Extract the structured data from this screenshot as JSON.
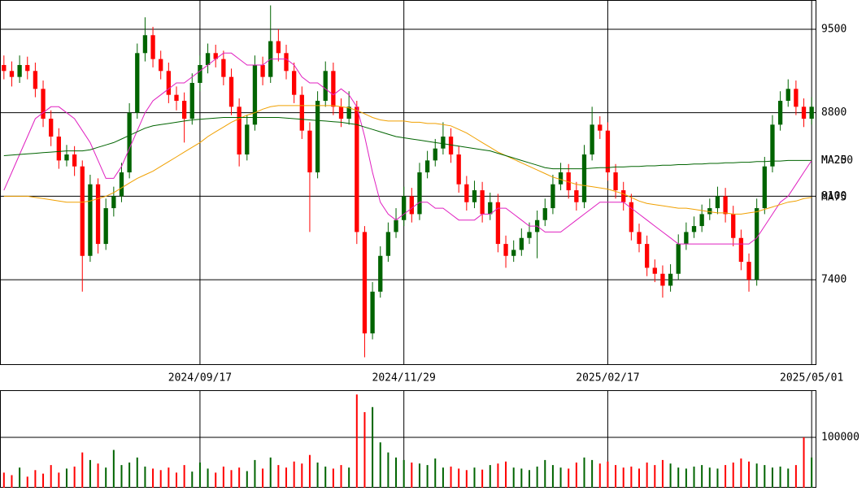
{
  "chart_data": {
    "type": "candlestick",
    "categories": [
      null,
      null,
      null,
      null,
      null,
      null,
      null,
      null,
      null,
      null,
      null,
      null,
      null,
      null,
      null,
      null,
      null,
      null,
      null,
      null,
      null,
      null,
      null,
      null,
      null,
      "2024/09/17",
      null,
      null,
      null,
      null,
      null,
      null,
      null,
      null,
      null,
      null,
      null,
      null,
      null,
      null,
      null,
      null,
      null,
      null,
      null,
      null,
      null,
      null,
      null,
      null,
      null,
      "2024/11/29",
      null,
      null,
      null,
      null,
      null,
      null,
      null,
      null,
      null,
      null,
      null,
      null,
      null,
      null,
      null,
      null,
      null,
      null,
      null,
      null,
      null,
      null,
      null,
      null,
      null,
      "2025/02/17",
      null,
      null,
      null,
      null,
      null,
      null,
      null,
      null,
      null,
      null,
      null,
      null,
      null,
      null,
      null,
      null,
      null,
      null,
      null,
      null,
      null,
      null,
      null,
      null,
      null,
      "2025/05/01"
    ],
    "open": [
      9200,
      9150,
      9100,
      9200,
      9150,
      9000,
      8750,
      8600,
      8400,
      8450,
      8350,
      7600,
      8200,
      7700,
      8000,
      8100,
      8300,
      8800,
      9300,
      9450,
      9250,
      9150,
      8950,
      8900,
      8750,
      9050,
      9200,
      9300,
      9250,
      9100,
      8850,
      8450,
      8700,
      9200,
      9100,
      9400,
      9300,
      9150,
      8950,
      8650,
      8300,
      8900,
      9150,
      8850,
      8750,
      8850,
      7800,
      6950,
      7300,
      7600,
      7800,
      7900,
      8100,
      7950,
      8300,
      8400,
      8500,
      8600,
      8450,
      8200,
      8050,
      8150,
      7950,
      8050,
      7700,
      7600,
      7650,
      7750,
      7800,
      7900,
      8000,
      8200,
      8300,
      8150,
      8050,
      8450,
      8700,
      8650,
      8300,
      8150,
      8050,
      7800,
      7700,
      7500,
      7450,
      7350,
      7450,
      7700,
      7800,
      7850,
      7950,
      8000,
      8100,
      7950,
      7750,
      7550,
      7400,
      8000,
      8350,
      8700,
      8900,
      9000,
      8850,
      8750
    ],
    "high": [
      9280,
      9230,
      9280,
      9270,
      9220,
      9070,
      8820,
      8670,
      8530,
      8520,
      8400,
      8280,
      8250,
      8080,
      8180,
      8380,
      8880,
      9380,
      9600,
      9520,
      9320,
      9220,
      9020,
      8970,
      9130,
      9280,
      9380,
      9370,
      9320,
      9170,
      8920,
      8780,
      9280,
      9270,
      9700,
      9500,
      9370,
      9220,
      9020,
      8720,
      8980,
      9230,
      9220,
      8920,
      8980,
      8900,
      7850,
      7380,
      7680,
      7880,
      8000,
      8180,
      8170,
      8380,
      8480,
      8580,
      8720,
      8670,
      8520,
      8270,
      8230,
      8220,
      8130,
      8120,
      7770,
      7730,
      7830,
      7880,
      7980,
      8080,
      8280,
      8380,
      8370,
      8220,
      8530,
      8850,
      8770,
      8720,
      8370,
      8220,
      8120,
      7870,
      7770,
      7570,
      7520,
      7530,
      7780,
      7880,
      7930,
      8030,
      8080,
      8180,
      8170,
      8020,
      7820,
      7620,
      8080,
      8430,
      8780,
      8980,
      9080,
      9070,
      8920,
      8930
    ],
    "low": [
      9080,
      9020,
      9050,
      9080,
      8930,
      8680,
      8520,
      8330,
      8350,
      8270,
      7300,
      7550,
      7620,
      7650,
      7930,
      8050,
      8250,
      8750,
      9230,
      9180,
      9080,
      8880,
      8820,
      8550,
      8700,
      8980,
      9130,
      9180,
      9030,
      8780,
      8350,
      8400,
      8650,
      9030,
      9050,
      9230,
      9080,
      8880,
      8580,
      7800,
      8250,
      8850,
      8780,
      8680,
      8700,
      7700,
      6750,
      6900,
      7250,
      7550,
      7750,
      7850,
      7880,
      7900,
      8250,
      8350,
      8450,
      8380,
      8130,
      7980,
      8000,
      7880,
      7900,
      7630,
      7500,
      7550,
      7600,
      7700,
      7580,
      7850,
      7950,
      8150,
      8080,
      7980,
      8000,
      8400,
      8580,
      8230,
      8080,
      7980,
      7730,
      7630,
      7430,
      7380,
      7250,
      7300,
      7400,
      7650,
      7750,
      7800,
      7900,
      7950,
      7880,
      7680,
      7480,
      7300,
      7350,
      7950,
      8300,
      8650,
      8850,
      8780,
      8680,
      8700
    ],
    "close": [
      9150,
      9100,
      9200,
      9150,
      9000,
      8750,
      8600,
      8400,
      8450,
      8350,
      7600,
      8200,
      7700,
      8000,
      8100,
      8300,
      8800,
      9300,
      9450,
      9250,
      9150,
      8950,
      8900,
      8750,
      9050,
      9200,
      9300,
      9250,
      9100,
      8850,
      8450,
      8700,
      9200,
      9100,
      9400,
      9300,
      9150,
      8950,
      8650,
      8300,
      8900,
      9150,
      8850,
      8750,
      8850,
      7800,
      6950,
      7300,
      7600,
      7800,
      7900,
      8100,
      7950,
      8300,
      8400,
      8500,
      8600,
      8450,
      8200,
      8050,
      8150,
      7950,
      8050,
      7700,
      7600,
      7650,
      7750,
      7800,
      7900,
      8000,
      8200,
      8300,
      8150,
      8050,
      8450,
      8700,
      8650,
      8300,
      8150,
      8050,
      7800,
      7700,
      7500,
      7450,
      7350,
      7450,
      7700,
      7800,
      7850,
      7950,
      8000,
      8100,
      7950,
      7750,
      7550,
      7400,
      8000,
      8350,
      8700,
      8900,
      9000,
      8850,
      8750,
      8850
    ],
    "up_color": "#006400",
    "down_color": "#ff0000",
    "ylim": [
      6692,
      9745
    ],
    "yticks": [
      9500,
      8800,
      8100,
      7400
    ],
    "grid": true,
    "moving_averages": [
      {
        "name": "MA25",
        "color": "#e020c0",
        "values": [
          8150,
          8300,
          8450,
          8600,
          8750,
          8800,
          8850,
          8850,
          8800,
          8750,
          8650,
          8550,
          8400,
          8250,
          8250,
          8350,
          8500,
          8650,
          8800,
          8900,
          8950,
          9000,
          9050,
          9050,
          9100,
          9150,
          9200,
          9250,
          9300,
          9300,
          9250,
          9200,
          9200,
          9200,
          9250,
          9250,
          9250,
          9200,
          9100,
          9050,
          9050,
          9000,
          8950,
          9000,
          8950,
          8850,
          8600,
          8300,
          8050,
          7950,
          7900,
          7950,
          8000,
          8050,
          8050,
          8000,
          8000,
          7950,
          7900,
          7900,
          7900,
          7950,
          7950,
          8000,
          8000,
          7950,
          7900,
          7850,
          7850,
          7800,
          7800,
          7800,
          7850,
          7900,
          7950,
          8000,
          8050,
          8050,
          8050,
          8050,
          8000,
          7950,
          7900,
          7850,
          7800,
          7750,
          7700,
          7700,
          7700,
          7700,
          7700,
          7700,
          7700,
          7700,
          7700,
          7700,
          7750,
          7850,
          7950,
          8050,
          8100,
          8200,
          8300,
          8400
        ]
      },
      {
        "name": "MA75",
        "color": "#f0a000",
        "values": [
          8100,
          8100,
          8100,
          8100,
          8090,
          8080,
          8070,
          8060,
          8050,
          8050,
          8050,
          8060,
          8080,
          8100,
          8130,
          8170,
          8210,
          8250,
          8280,
          8310,
          8350,
          8390,
          8430,
          8470,
          8510,
          8550,
          8600,
          8640,
          8680,
          8720,
          8750,
          8780,
          8800,
          8830,
          8850,
          8860,
          8860,
          8860,
          8860,
          8860,
          8860,
          8860,
          8860,
          8850,
          8840,
          8820,
          8790,
          8760,
          8740,
          8730,
          8730,
          8730,
          8720,
          8720,
          8710,
          8710,
          8700,
          8690,
          8660,
          8630,
          8590,
          8550,
          8510,
          8470,
          8440,
          8410,
          8380,
          8350,
          8320,
          8290,
          8260,
          8240,
          8220,
          8200,
          8190,
          8180,
          8170,
          8160,
          8140,
          8120,
          8090,
          8060,
          8040,
          8030,
          8020,
          8010,
          8000,
          8000,
          7990,
          7980,
          7970,
          7960,
          7960,
          7950,
          7950,
          7960,
          7970,
          7990,
          8010,
          8030,
          8050,
          8060,
          8080,
          8090
        ]
      },
      {
        "name": "MA200",
        "color": "#006400",
        "values": [
          8440,
          8445,
          8450,
          8455,
          8460,
          8465,
          8470,
          8475,
          8480,
          8480,
          8480,
          8490,
          8510,
          8530,
          8550,
          8580,
          8610,
          8640,
          8670,
          8690,
          8700,
          8710,
          8720,
          8730,
          8740,
          8745,
          8750,
          8755,
          8760,
          8760,
          8760,
          8760,
          8760,
          8760,
          8760,
          8760,
          8755,
          8750,
          8745,
          8740,
          8735,
          8730,
          8725,
          8720,
          8710,
          8700,
          8680,
          8660,
          8640,
          8620,
          8600,
          8590,
          8580,
          8570,
          8560,
          8550,
          8540,
          8530,
          8520,
          8510,
          8500,
          8490,
          8480,
          8460,
          8440,
          8420,
          8400,
          8380,
          8360,
          8340,
          8330,
          8330,
          8330,
          8330,
          8330,
          8335,
          8340,
          8340,
          8345,
          8345,
          8350,
          8350,
          8355,
          8355,
          8360,
          8360,
          8365,
          8365,
          8370,
          8370,
          8375,
          8375,
          8380,
          8380,
          8385,
          8385,
          8390,
          8390,
          8395,
          8395,
          8400,
          8400,
          8400,
          8400
        ]
      }
    ],
    "volume": {
      "values": [
        30000,
        25000,
        40000,
        22000,
        35000,
        28000,
        45000,
        30000,
        38000,
        42000,
        70000,
        55000,
        48000,
        40000,
        75000,
        45000,
        50000,
        60000,
        42000,
        38000,
        35000,
        40000,
        30000,
        45000,
        32000,
        50000,
        38000,
        30000,
        42000,
        35000,
        40000,
        33000,
        55000,
        38000,
        60000,
        45000,
        40000,
        52000,
        48000,
        65000,
        50000,
        42000,
        38000,
        45000,
        40000,
        185000,
        150000,
        160000,
        90000,
        70000,
        60000,
        55000,
        50000,
        48000,
        45000,
        58000,
        40000,
        42000,
        38000,
        35000,
        40000,
        36000,
        45000,
        48000,
        52000,
        40000,
        38000,
        35000,
        42000,
        55000,
        45000,
        40000,
        38000,
        50000,
        60000,
        55000,
        48000,
        52000,
        45000,
        40000,
        42000,
        38000,
        50000,
        45000,
        55000,
        48000,
        40000,
        38000,
        42000,
        45000,
        40000,
        38000,
        45000,
        50000,
        58000,
        52000,
        48000,
        45000,
        40000,
        42000,
        38000,
        45000,
        100000,
        60000
      ],
      "ylim": [
        0,
        193500
      ],
      "yticks": [
        100000
      ]
    }
  }
}
